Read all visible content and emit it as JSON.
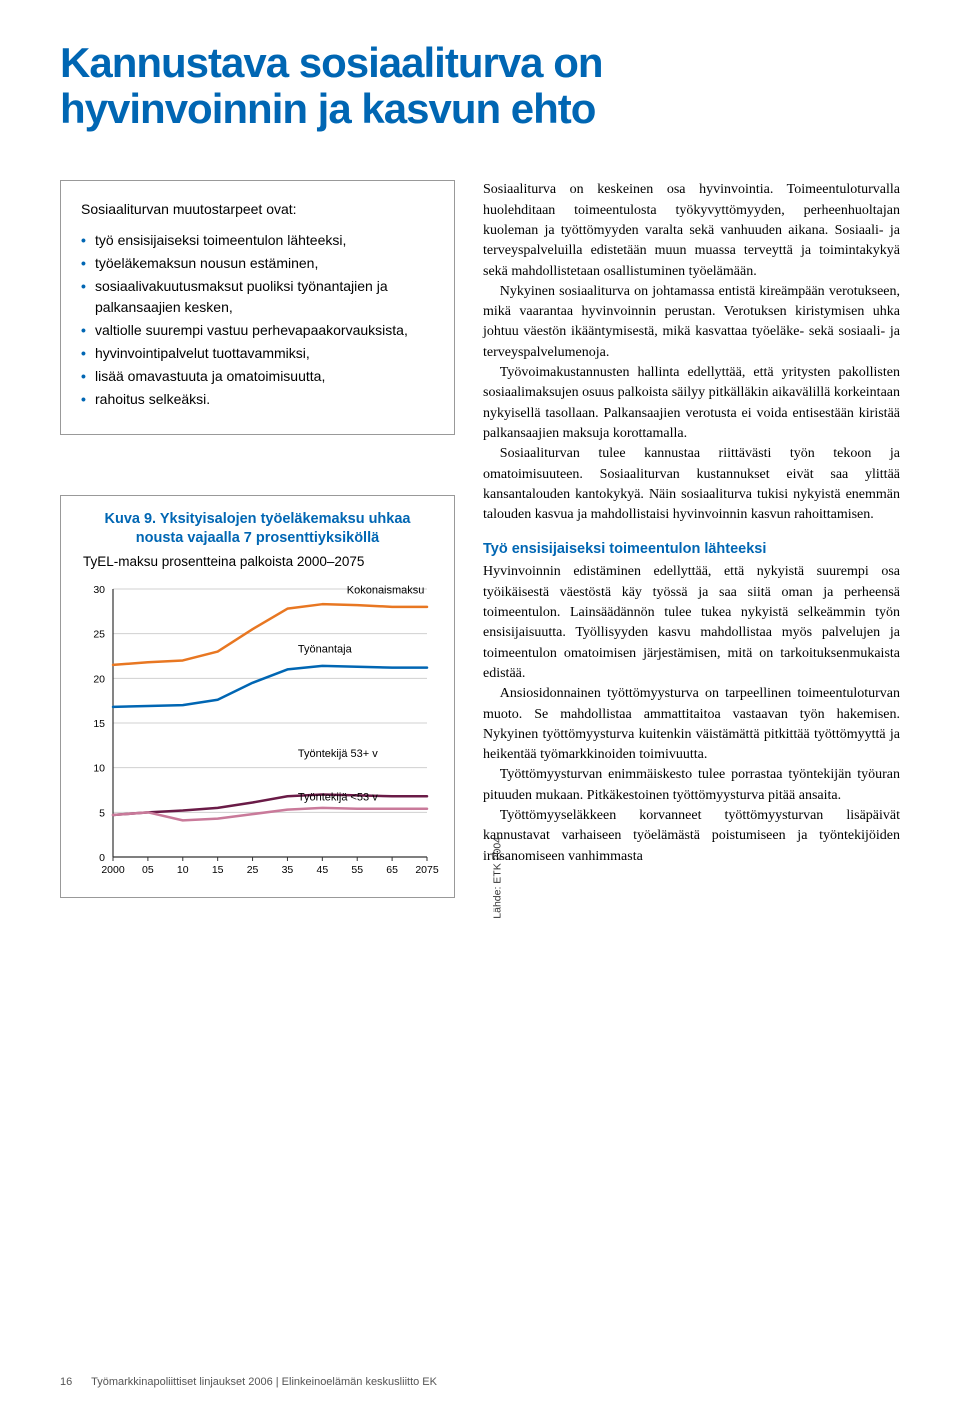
{
  "title_line1": "Kannustava sosiaaliturva on",
  "title_line2": "hyvinvoinnin ja kasvun ehto",
  "box": {
    "intro": "Sosiaaliturvan muutostarpeet ovat:",
    "items": [
      "työ ensisijaiseksi toimeentulon lähteeksi,",
      "työeläkemaksun nousun estäminen,",
      "sosiaalivakuutusmaksut puoliksi työnantajien ja palkansaajien kesken,",
      "valtiolle suurempi vastuu perhevapaa­korvauksista,",
      "hyvinvointipalvelut tuottavammiksi,",
      "lisää omavastuuta ja omatoimisuutta,",
      "rahoitus selkeäksi."
    ]
  },
  "chart": {
    "title": "Kuva 9. Yksityisalojen työeläkemaksu uhkaa nousta vajaalla 7 prosenttiyksiköllä",
    "subtitle": "TyEL-maksu prosentteina palkoista 2000–2075",
    "source": "Lähde: ETK 2004",
    "type": "line",
    "ylim": [
      0,
      30
    ],
    "ytick_step": 5,
    "yticks": [
      0,
      5,
      10,
      15,
      20,
      25,
      30
    ],
    "x_categories": [
      "2000",
      "05",
      "10",
      "15",
      "25",
      "35",
      "45",
      "55",
      "65",
      "2075"
    ],
    "background_color": "#ffffff",
    "grid_color": "#d0d0d0",
    "axis_color": "#333333",
    "line_width": 2.5,
    "label_fontsize": 11,
    "tick_fontsize": 10.5,
    "series": [
      {
        "name": "Kokonaismaksu",
        "label": "Kokonaismaksu",
        "color": "#e87722",
        "values": [
          21.5,
          21.8,
          22.0,
          23.0,
          25.5,
          27.8,
          28.3,
          28.2,
          28.0,
          28.0
        ],
        "label_pos": {
          "cx_idx": 6.7,
          "cy": 29.5
        }
      },
      {
        "name": "Tyonantaja",
        "label": "Työnantaja",
        "color": "#0066b3",
        "values": [
          16.8,
          16.9,
          17.0,
          17.6,
          19.5,
          21.0,
          21.4,
          21.3,
          21.2,
          21.2
        ],
        "label_pos": {
          "cx_idx": 5.3,
          "cy": 22.9
        }
      },
      {
        "name": "Tyontekija53plus",
        "label": "Työntekijä 53+ v",
        "color": "#6a1b47",
        "values": [
          4.7,
          5.0,
          5.2,
          5.5,
          6.1,
          6.8,
          7.0,
          6.9,
          6.8,
          6.8
        ],
        "label_pos": {
          "cx_idx": 5.3,
          "cy": 11.2
        }
      },
      {
        "name": "Tyontekija_lt53",
        "label": "Työntekijä <53 v",
        "color": "#c97a9a",
        "values": [
          4.7,
          5.0,
          4.1,
          4.3,
          4.8,
          5.3,
          5.5,
          5.4,
          5.4,
          5.4
        ],
        "label_pos": {
          "cx_idx": 5.3,
          "cy": 6.3
        }
      }
    ]
  },
  "body": {
    "p1": "Sosiaaliturva on keskeinen osa hyvinvointia. Toimeen­tuloturvalla huolehditaan toimeentulosta työkyvyttö­myyden, perheenhuoltajan kuoleman ja työttömyyden varalta sekä vanhuuden aikana. Sosiaali- ja terveyspal­veluilla edistetään muun muassa terveyttä ja toiminta­kykyä sekä mahdollistetaan osallistuminen työelämään.",
    "p2": "Nykyinen sosiaaliturva on johtamassa entistä ki­reämpään verotukseen, mikä vaarantaa hyvinvoinnin perustan. Verotuksen kiristymisen uhka johtuu väestön ikääntymisestä, mikä kasvattaa työeläke- sekä sosiaali- ja terveyspalvelumenoja.",
    "p3": "Työvoimakustannusten hallinta edellyttää, että yri­tysten pakollisten sosiaalimaksujen osuus palkoista säi­lyy pitkälläkin aikavälillä korkeintaan nykyisellä tasol­laan. Palkansaajien verotusta ei voida entisestään kiris­tää palkansaajien maksuja korottamalla.",
    "p4": "Sosiaaliturvan tulee kannustaa riittävästi työn te­koon ja omatoimisuuteen. Sosiaaliturvan kustannukset eivät saa ylittää kansantalouden kantokykyä. Näin sosi­aaliturva tukisi nykyistä enemmän talouden kasvua ja mahdollistaisi hyvinvoinnin kasvun rahoittamisen.",
    "subhead1": "Työ ensisijaiseksi toimeentulon lähteeksi",
    "p5": "Hyvinvoinnin edistäminen edellyttää, että nykyistä suu­rempi osa työikäisestä väestöstä käy työssä ja saa siitä oman ja perheensä toimeentulon. Lainsäädännön tulee tukea nykyistä selkeämmin työn ensisijaisuutta. Työlli­syyden kasvu mahdollistaa myös palvelujen ja toimeen­tulon omatoimisen järjestämisen, mitä on tarkoituksen­mukaista edistää.",
    "p6": "Ansiosidonnainen työttömyysturva on tarpeellinen toimeentuloturvan muoto. Se mahdollistaa ammattitai­toa vastaavan työn hakemisen. Nykyinen työttömyys­turva kuitenkin väistämättä pitkittää työttömyyttä ja heikentää työmarkkinoiden toimivuutta.",
    "p7": "Työttömyysturvan enimmäiskesto tulee porrastaa työntekijän työuran pituuden mukaan. Pitkäkestoinen työttömyysturva pitää ansaita.",
    "p8": "Työttömyyseläkkeen korvanneet työttömyysturvan lisäpäivät kannustavat varhaiseen työelämästä poistu­miseen ja työntekijöiden irtisanomiseen vanhimmasta"
  },
  "footer": {
    "page": "16",
    "text": "Työmarkkinapoliittiset linjaukset 2006 | Elinkeinoelämän keskusliitto EK"
  }
}
